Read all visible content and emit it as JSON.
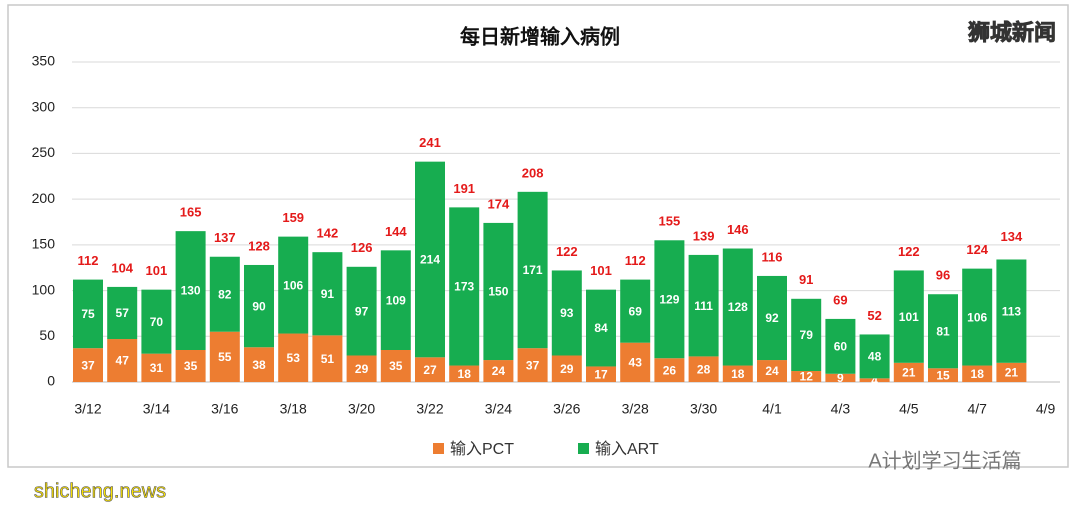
{
  "chart_data": {
    "type": "stacked-bar",
    "title": "每日新增输入病例",
    "categories": [
      "3/12",
      null,
      "3/14",
      null,
      "3/16",
      null,
      "3/18",
      null,
      "3/20",
      null,
      "3/22",
      null,
      "3/24",
      null,
      "3/26",
      null,
      "3/28",
      null,
      "3/30",
      null,
      "4/1",
      null,
      "4/3",
      null,
      "4/5",
      null,
      "4/7",
      null,
      "4/9"
    ],
    "series": [
      {
        "name": "输入PCT",
        "color": "#ed7d31",
        "values": [
          37,
          47,
          31,
          35,
          55,
          38,
          53,
          51,
          29,
          35,
          27,
          18,
          24,
          37,
          29,
          17,
          43,
          26,
          28,
          18,
          24,
          12,
          9,
          4,
          21,
          15,
          18,
          21,
          null
        ]
      },
      {
        "name": "输入ART",
        "color": "#17ad50",
        "values": [
          75,
          57,
          70,
          130,
          82,
          90,
          106,
          91,
          97,
          109,
          214,
          173,
          150,
          171,
          93,
          84,
          69,
          129,
          111,
          128,
          92,
          79,
          60,
          48,
          101,
          81,
          106,
          113,
          null
        ]
      }
    ],
    "totals": [
      112,
      104,
      101,
      165,
      137,
      128,
      159,
      142,
      126,
      144,
      241,
      191,
      174,
      208,
      122,
      101,
      112,
      155,
      139,
      146,
      116,
      91,
      69,
      52,
      122,
      96,
      124,
      134,
      null
    ],
    "ylim": [
      0,
      350
    ],
    "yticks": [
      0,
      50,
      100,
      150,
      200,
      250,
      300,
      350
    ],
    "grid": true
  },
  "watermark": "狮城新闻",
  "source": "A计划学习生活篇",
  "site": "shicheng.news"
}
